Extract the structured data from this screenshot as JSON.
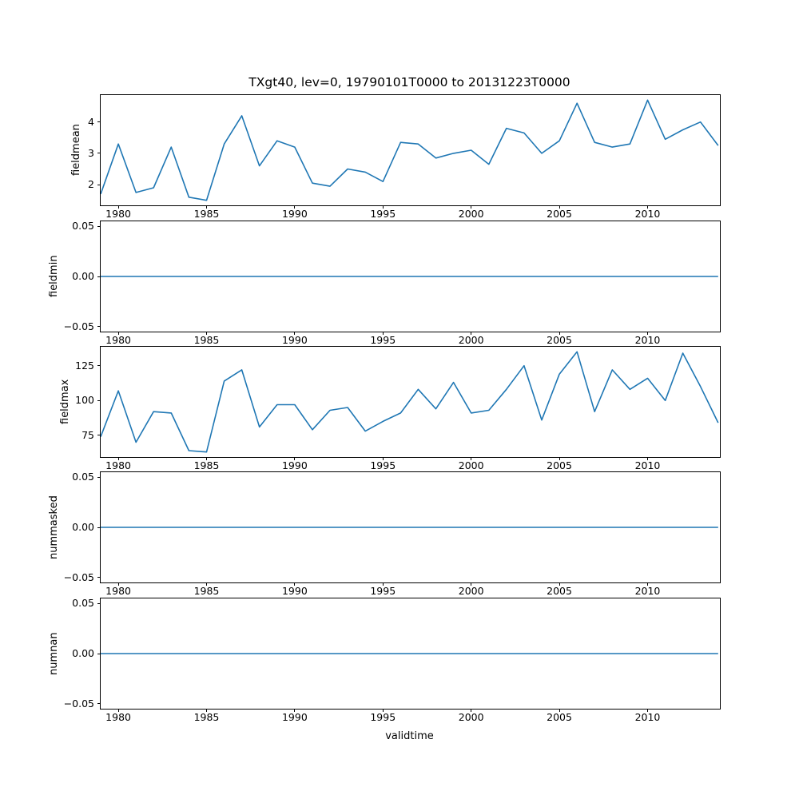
{
  "figure": {
    "background": "#ffffff",
    "axes_edge_color": "#000000"
  },
  "chart_data": {
    "type": "line",
    "title": "TXgt40, lev=0, 19790101T0000 to 20131223T0000",
    "xlabel": "validtime",
    "line_color": "#1f77b4",
    "grid": false,
    "legend": "none",
    "x": [
      1979,
      1980,
      1981,
      1982,
      1983,
      1984,
      1985,
      1986,
      1987,
      1988,
      1989,
      1990,
      1991,
      1992,
      1993,
      1994,
      1995,
      1996,
      1997,
      1998,
      1999,
      2000,
      2001,
      2002,
      2003,
      2004,
      2005,
      2006,
      2007,
      2008,
      2009,
      2010,
      2011,
      2012,
      2013,
      2014
    ],
    "xlim": [
      1979,
      2014.1
    ],
    "x_ticks": [
      1980,
      1985,
      1990,
      1995,
      2000,
      2005,
      2010
    ],
    "x_tick_labels": [
      "1980",
      "1985",
      "1990",
      "1995",
      "2000",
      "2005",
      "2010"
    ],
    "subplots": [
      {
        "ylabel": "fieldmean",
        "values": [
          1.7,
          3.3,
          1.75,
          1.9,
          3.2,
          1.6,
          1.5,
          3.3,
          4.2,
          2.6,
          3.4,
          3.2,
          2.05,
          1.95,
          2.5,
          2.4,
          2.1,
          3.35,
          3.3,
          2.85,
          3.0,
          3.1,
          2.65,
          3.8,
          3.65,
          3.0,
          3.4,
          4.6,
          3.35,
          3.2,
          3.3,
          4.7,
          3.45,
          3.75,
          4.0,
          3.25
        ],
        "ylim": [
          1.34,
          4.86
        ],
        "y_ticks": [
          2,
          3,
          4
        ],
        "y_tick_labels": [
          "2",
          "3",
          "4"
        ]
      },
      {
        "ylabel": "fieldmin",
        "values": [
          0,
          0,
          0,
          0,
          0,
          0,
          0,
          0,
          0,
          0,
          0,
          0,
          0,
          0,
          0,
          0,
          0,
          0,
          0,
          0,
          0,
          0,
          0,
          0,
          0,
          0,
          0,
          0,
          0,
          0,
          0,
          0,
          0,
          0,
          0,
          0
        ],
        "ylim": [
          -0.055,
          0.055
        ],
        "y_ticks": [
          -0.05,
          0,
          0.05
        ],
        "y_tick_labels": [
          "−0.05",
          "0.00",
          "0.05"
        ]
      },
      {
        "ylabel": "fieldmax",
        "values": [
          74,
          107,
          70,
          92,
          91,
          64,
          63,
          114,
          122,
          81,
          97,
          97,
          79,
          93,
          95,
          78,
          85,
          91,
          108,
          94,
          113,
          91,
          93,
          108,
          125,
          86,
          119,
          135,
          92,
          122,
          108,
          116,
          100,
          134,
          110,
          84
        ],
        "ylim": [
          59.4,
          138.6
        ],
        "y_ticks": [
          75,
          100,
          125
        ],
        "y_tick_labels": [
          "75",
          "100",
          "125"
        ]
      },
      {
        "ylabel": "nummasked",
        "values": [
          0,
          0,
          0,
          0,
          0,
          0,
          0,
          0,
          0,
          0,
          0,
          0,
          0,
          0,
          0,
          0,
          0,
          0,
          0,
          0,
          0,
          0,
          0,
          0,
          0,
          0,
          0,
          0,
          0,
          0,
          0,
          0,
          0,
          0,
          0,
          0
        ],
        "ylim": [
          -0.055,
          0.055
        ],
        "y_ticks": [
          -0.05,
          0,
          0.05
        ],
        "y_tick_labels": [
          "−0.05",
          "0.00",
          "0.05"
        ]
      },
      {
        "ylabel": "numnan",
        "values": [
          0,
          0,
          0,
          0,
          0,
          0,
          0,
          0,
          0,
          0,
          0,
          0,
          0,
          0,
          0,
          0,
          0,
          0,
          0,
          0,
          0,
          0,
          0,
          0,
          0,
          0,
          0,
          0,
          0,
          0,
          0,
          0,
          0,
          0,
          0,
          0
        ],
        "ylim": [
          -0.055,
          0.055
        ],
        "y_ticks": [
          -0.05,
          0,
          0.05
        ],
        "y_tick_labels": [
          "−0.05",
          "0.00",
          "0.05"
        ]
      }
    ]
  }
}
